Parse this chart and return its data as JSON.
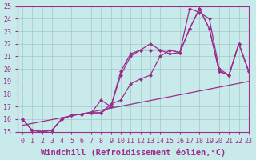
{
  "xlabel": "Windchill (Refroidissement éolien,°C)",
  "ylabel": "",
  "bg_color": "#c8eaea",
  "grid_color": "#a0c8c8",
  "line_color": "#9b2d8c",
  "xlim": [
    -0.5,
    23
  ],
  "ylim": [
    15,
    25
  ],
  "xticks": [
    0,
    1,
    2,
    3,
    4,
    5,
    6,
    7,
    8,
    9,
    10,
    11,
    12,
    13,
    14,
    15,
    16,
    17,
    18,
    19,
    20,
    21,
    22,
    23
  ],
  "yticks": [
    15,
    16,
    17,
    18,
    19,
    20,
    21,
    22,
    23,
    24,
    25
  ],
  "line1_x": [
    0,
    1,
    2,
    3,
    4,
    5,
    6,
    7,
    8,
    9,
    10,
    11,
    12,
    13,
    14,
    15,
    16,
    17,
    18,
    19,
    20,
    21,
    22,
    23
  ],
  "line1_y": [
    16.0,
    15.1,
    15.0,
    15.1,
    16.0,
    16.3,
    16.4,
    16.5,
    17.5,
    17.0,
    19.5,
    21.0,
    21.5,
    21.5,
    21.5,
    21.2,
    21.3,
    23.2,
    24.8,
    23.2,
    19.8,
    19.5,
    22.0,
    19.8
  ],
  "line2_x": [
    0,
    1,
    2,
    3,
    4,
    5,
    6,
    7,
    8,
    9,
    10,
    11,
    12,
    13,
    14,
    15,
    16,
    17,
    18,
    19,
    20,
    21,
    22,
    23
  ],
  "line2_y": [
    16.0,
    15.1,
    15.0,
    15.1,
    16.0,
    16.3,
    16.4,
    16.5,
    16.5,
    17.2,
    17.5,
    18.8,
    19.2,
    19.5,
    21.0,
    21.5,
    21.3,
    24.8,
    24.5,
    24.0,
    20.0,
    19.5,
    22.0,
    19.8
  ],
  "line3_x": [
    0,
    1,
    2,
    3,
    4,
    5,
    6,
    7,
    8,
    9,
    10,
    11,
    12,
    13,
    14,
    15,
    16,
    17,
    18,
    19,
    20,
    21,
    22,
    23
  ],
  "line3_y": [
    16.0,
    15.1,
    15.0,
    15.1,
    16.0,
    16.3,
    16.4,
    16.5,
    16.5,
    17.0,
    19.8,
    21.2,
    21.5,
    22.0,
    21.5,
    21.5,
    21.3,
    23.2,
    24.8,
    23.2,
    19.8,
    19.5,
    22.0,
    19.8
  ],
  "line4_x": [
    0,
    23
  ],
  "line4_y": [
    15.5,
    19.0
  ],
  "tick_fontsize": 6.0,
  "xlabel_fontsize": 7.5,
  "marker": "D",
  "markersize": 2.5,
  "linewidth": 0.9
}
